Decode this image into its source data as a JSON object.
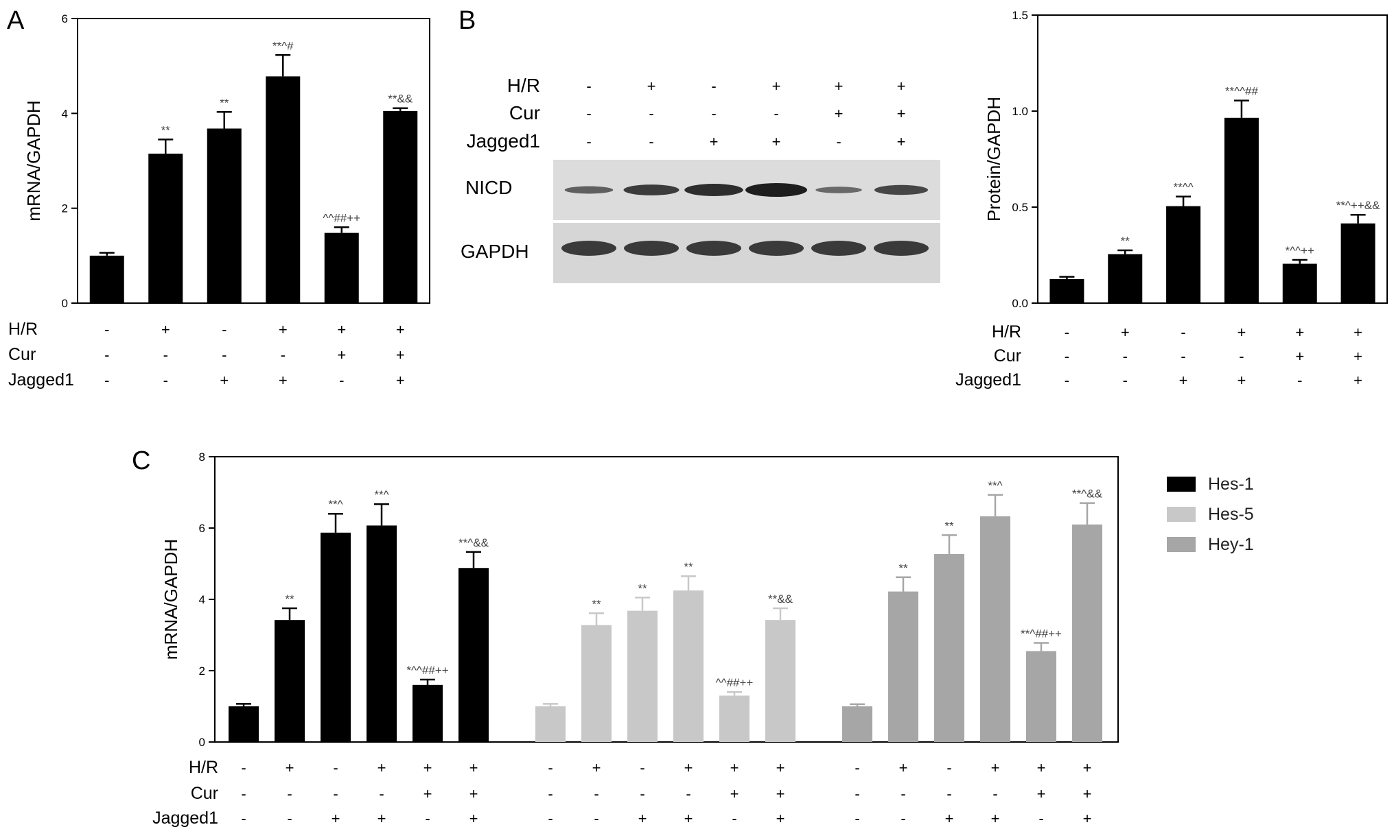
{
  "panels": {
    "A": {
      "letter": "A"
    },
    "B": {
      "letter": "B"
    },
    "C": {
      "letter": "C"
    }
  },
  "condition_labels": [
    "H/R",
    "Cur",
    "Jagged1"
  ],
  "blot": {
    "header": {
      "H/R": [
        "-",
        "+",
        "-",
        "+",
        "+",
        "+"
      ],
      "Cur": [
        "-",
        "-",
        "-",
        "-",
        "+",
        "+"
      ],
      "Jagged1": [
        "-",
        "-",
        "+",
        "+",
        "-",
        "+"
      ]
    },
    "row_labels": [
      "NICD",
      "GAPDH"
    ],
    "nicd_intensity": [
      0.35,
      0.7,
      0.85,
      1.0,
      0.25,
      0.6
    ]
  },
  "colors": {
    "Hes-1": "#000000",
    "Hes-5": "#c8c8c8",
    "Hey-1": "#a6a6a6",
    "bar_A": "#000000",
    "bar_B": "#000000"
  },
  "chart_data": [
    {
      "id": "A",
      "type": "bar",
      "ylabel": "mRNA/GAPDH",
      "ylim": [
        0,
        6
      ],
      "yticks": [
        "0",
        "2",
        "4",
        "6"
      ],
      "groups": {
        "H/R": [
          "-",
          "+",
          "-",
          "+",
          "+",
          "+"
        ],
        "Cur": [
          "-",
          "-",
          "-",
          "-",
          "+",
          "+"
        ],
        "Jagged1": [
          "-",
          "-",
          "+",
          "+",
          "-",
          "+"
        ]
      },
      "values": [
        1.0,
        3.15,
        3.68,
        4.78,
        1.48,
        4.05
      ],
      "errors": [
        0.06,
        0.3,
        0.35,
        0.45,
        0.12,
        0.06
      ],
      "annotations": [
        "",
        "**",
        "**",
        "**^#",
        "^^##++",
        "**&&"
      ]
    },
    {
      "id": "B",
      "type": "bar",
      "ylabel": "Protein/GAPDH",
      "ylim": [
        0,
        1.5
      ],
      "yticks": [
        "0.0",
        "0.5",
        "1.0",
        "1.5"
      ],
      "groups": {
        "H/R": [
          "-",
          "+",
          "-",
          "+",
          "+",
          "+"
        ],
        "Cur": [
          "-",
          "-",
          "-",
          "-",
          "+",
          "+"
        ],
        "Jagged1": [
          "-",
          "-",
          "+",
          "+",
          "-",
          "+"
        ]
      },
      "values": [
        0.125,
        0.255,
        0.505,
        0.965,
        0.205,
        0.415
      ],
      "errors": [
        0.012,
        0.02,
        0.05,
        0.09,
        0.02,
        0.045
      ],
      "annotations": [
        "",
        "**",
        "**^^",
        "**^^##",
        "*^^++",
        "**^++&&"
      ]
    },
    {
      "id": "C",
      "type": "bar",
      "ylabel": "mRNA/GAPDH",
      "ylim": [
        0,
        8
      ],
      "yticks": [
        "0",
        "2",
        "4",
        "6",
        "8"
      ],
      "groups": {
        "H/R": [
          "-",
          "+",
          "-",
          "+",
          "+",
          "+"
        ],
        "Cur": [
          "-",
          "-",
          "-",
          "-",
          "+",
          "+"
        ],
        "Jagged1": [
          "-",
          "-",
          "+",
          "+",
          "-",
          "+"
        ]
      },
      "series": [
        {
          "name": "Hes-1",
          "values": [
            1.0,
            3.42,
            5.87,
            6.07,
            1.6,
            4.88
          ],
          "errors": [
            0.07,
            0.33,
            0.53,
            0.6,
            0.15,
            0.45
          ],
          "annotations": [
            "",
            "**",
            "**^",
            "**^",
            "*^^##++",
            "**^&&"
          ]
        },
        {
          "name": "Hes-5",
          "values": [
            1.0,
            3.28,
            3.68,
            4.25,
            1.3,
            3.42
          ],
          "errors": [
            0.07,
            0.33,
            0.37,
            0.4,
            0.1,
            0.33
          ],
          "annotations": [
            "",
            "**",
            "**",
            "**",
            "^^##++",
            "**&&"
          ]
        },
        {
          "name": "Hey-1",
          "values": [
            1.0,
            4.22,
            5.27,
            6.33,
            2.55,
            6.1
          ],
          "errors": [
            0.06,
            0.4,
            0.53,
            0.6,
            0.23,
            0.6
          ],
          "annotations": [
            "",
            "**",
            "**",
            "**^",
            "**^##++",
            "**^&&"
          ]
        }
      ],
      "legend": [
        "Hes-1",
        "Hes-5",
        "Hey-1"
      ]
    }
  ]
}
